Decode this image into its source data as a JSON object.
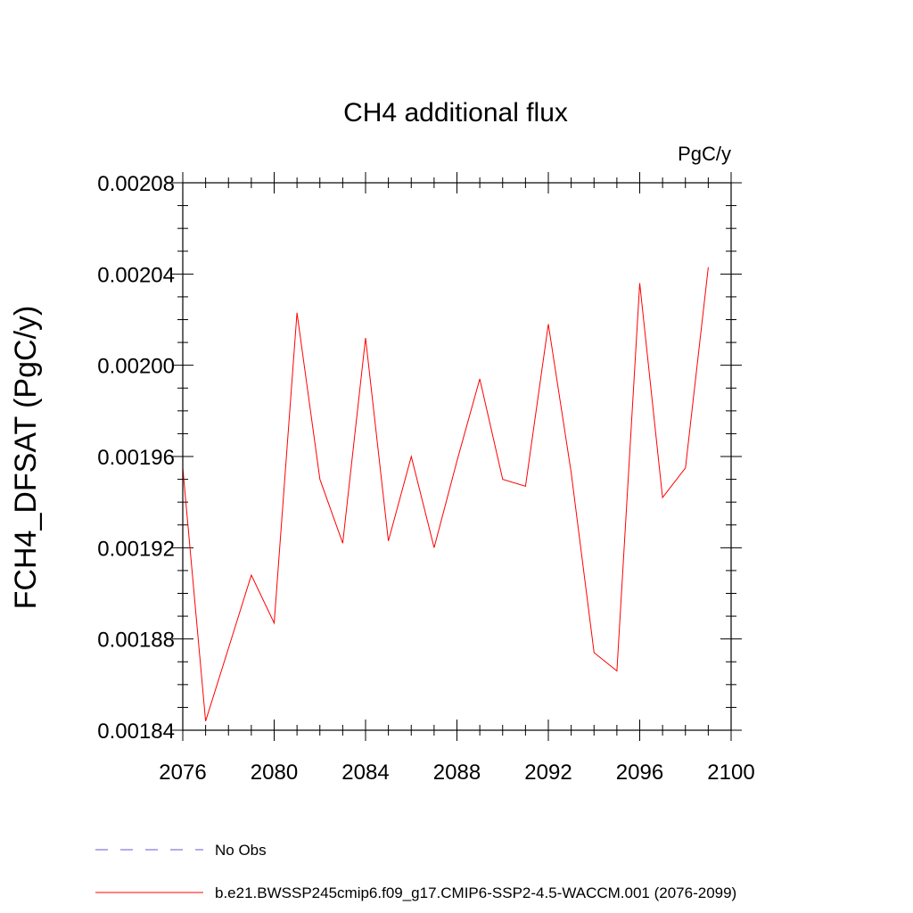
{
  "chart_data": {
    "type": "line",
    "title": "CH4 additional flux",
    "units_label": "PgC/y",
    "ylabel": "FCH4_DFSAT  (PgC/y)",
    "xlabel": "",
    "xlim": [
      2076,
      2100
    ],
    "ylim": [
      0.00184,
      0.00208
    ],
    "x_ticks": [
      2076,
      2080,
      2084,
      2088,
      2092,
      2096,
      2100
    ],
    "x_tick_labels": [
      "2076",
      "2080",
      "2084",
      "2088",
      "2092",
      "2096",
      "2100"
    ],
    "y_ticks": [
      0.00184,
      0.00188,
      0.00192,
      0.00196,
      0.002,
      0.00204,
      0.00208
    ],
    "y_tick_labels": [
      "0.00184",
      "0.00188",
      "0.00192",
      "0.00196",
      "0.00200",
      "0.00204",
      "0.00208"
    ],
    "x_minor_step": 1,
    "y_minor_step": 1e-05,
    "grid": false,
    "legend_position": "bottom-left",
    "series": [
      {
        "name": "b.e21.BWSSP245cmip6.f09_g17.CMIP6-SSP2-4.5-WACCM.001 (2076-2099)",
        "color": "#ff0000",
        "style": "solid",
        "x": [
          2076,
          2077,
          2078,
          2079,
          2080,
          2081,
          2082,
          2083,
          2084,
          2085,
          2086,
          2087,
          2088,
          2089,
          2090,
          2091,
          2092,
          2093,
          2094,
          2095,
          2096,
          2097,
          2098,
          2099
        ],
        "values": [
          0.001955,
          0.001844,
          0.001876,
          0.001908,
          0.001887,
          0.002023,
          0.00195,
          0.001922,
          0.002012,
          0.001923,
          0.00196,
          0.00192,
          0.001958,
          0.001994,
          0.00195,
          0.001947,
          0.002018,
          0.001953,
          0.001874,
          0.001866,
          0.002036,
          0.001942,
          0.001955,
          0.002043
        ]
      }
    ],
    "legend": [
      {
        "label": "No Obs",
        "color": "#6a5acd",
        "style": "dashed"
      },
      {
        "label": "b.e21.BWSSP245cmip6.f09_g17.CMIP6-SSP2-4.5-WACCM.001 (2076-2099)",
        "color": "#ff0000",
        "style": "solid"
      }
    ]
  }
}
